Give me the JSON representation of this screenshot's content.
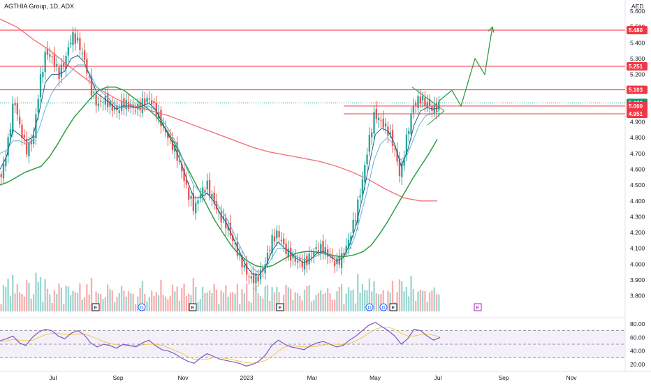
{
  "header": {
    "title": "AGTHIA Group, 1D, ADX",
    "currency": "AED"
  },
  "chart_data": [
    {
      "type": "candlestick",
      "title": "AGTHIA Group, 1D, ADX",
      "ylabel": "AED",
      "ylim": [
        3.75,
        5.6
      ],
      "y_ticks": [
        "5.600",
        "5.500",
        "5.400",
        "5.300",
        "5.200",
        "5.100",
        "5.000",
        "4.900",
        "4.800",
        "4.700",
        "4.600",
        "4.500",
        "4.400",
        "4.300",
        "4.200",
        "4.100",
        "4.000",
        "3.900",
        "3.800"
      ],
      "x_ticks": [
        "Jul",
        "Sep",
        "Nov",
        "2023",
        "Mar",
        "May",
        "Jul",
        "Sep",
        "Nov"
      ],
      "price_levels": [
        {
          "label": "5.480",
          "value": 5.48,
          "color": "#f23645"
        },
        {
          "label": "5.251",
          "value": 5.251,
          "color": "#f23645"
        },
        {
          "label": "5.103",
          "value": 5.103,
          "color": "#f23645"
        },
        {
          "label": "5.020",
          "value": 5.02,
          "color": "#089981"
        },
        {
          "label": "5.000",
          "value": 5.0,
          "color": "#f23645"
        },
        {
          "label": "4.951",
          "value": 4.951,
          "color": "#f23645"
        }
      ],
      "price_series": [
        4.55,
        4.75,
        5.05,
        4.85,
        4.72,
        4.8,
        5.15,
        5.35,
        5.3,
        5.2,
        5.3,
        5.45,
        5.4,
        5.28,
        5.1,
        5.0,
        5.05,
        5.0,
        4.97,
        5.02,
        5.0,
        4.98,
        5.02,
        5.05,
        4.98,
        4.88,
        4.8,
        4.72,
        4.6,
        4.45,
        4.35,
        4.45,
        4.5,
        4.4,
        4.3,
        4.25,
        4.15,
        4.05,
        3.95,
        3.9,
        3.92,
        4.0,
        4.15,
        4.2,
        4.1,
        4.05,
        4.02,
        4.0,
        4.05,
        4.1,
        4.1,
        4.05,
        4.0,
        4.05,
        4.15,
        4.3,
        4.5,
        4.75,
        4.95,
        4.9,
        4.85,
        4.75,
        4.55,
        4.8,
        5.0,
        5.05,
        5.02,
        4.98,
        5.0
      ],
      "ma_fast": [
        4.6,
        4.68,
        4.85,
        4.82,
        4.78,
        4.8,
        4.95,
        5.15,
        5.2,
        5.2,
        5.22,
        5.3,
        5.32,
        5.28,
        5.18,
        5.08,
        5.05,
        5.02,
        4.98,
        5.0,
        5.0,
        4.99,
        5.0,
        5.02,
        4.98,
        4.9,
        4.82,
        4.74,
        4.64,
        4.52,
        4.42,
        4.42,
        4.45,
        4.4,
        4.32,
        4.26,
        4.17,
        4.08,
        3.99,
        3.94,
        3.93,
        3.98,
        4.08,
        4.14,
        4.1,
        4.07,
        4.03,
        4.01,
        4.03,
        4.07,
        4.08,
        4.05,
        4.02,
        4.04,
        4.12,
        4.24,
        4.42,
        4.62,
        4.82,
        4.86,
        4.84,
        4.76,
        4.62,
        4.72,
        4.88,
        4.97,
        4.99,
        4.98,
        4.99
      ],
      "ma_mid": [
        4.7,
        4.72,
        4.78,
        4.78,
        4.76,
        4.78,
        4.85,
        4.98,
        5.08,
        5.14,
        5.18,
        5.22,
        5.26,
        5.26,
        5.2,
        5.12,
        5.08,
        5.04,
        5.0,
        4.99,
        4.99,
        4.99,
        4.99,
        5.0,
        4.98,
        4.92,
        4.86,
        4.79,
        4.7,
        4.6,
        4.5,
        4.46,
        4.45,
        4.42,
        4.36,
        4.3,
        4.22,
        4.13,
        4.05,
        3.98,
        3.95,
        3.96,
        4.03,
        4.1,
        4.1,
        4.08,
        4.05,
        4.03,
        4.03,
        4.05,
        4.07,
        4.06,
        4.04,
        4.04,
        4.08,
        4.17,
        4.32,
        4.48,
        4.66,
        4.76,
        4.8,
        4.76,
        4.66,
        4.68,
        4.78,
        4.88,
        4.94,
        4.95,
        4.97
      ],
      "ma_slow": [
        4.5,
        4.52,
        4.55,
        4.58,
        4.6,
        4.62,
        4.68,
        4.76,
        4.85,
        4.93,
        4.99,
        5.05,
        5.1,
        5.12,
        5.12,
        5.1,
        5.06,
        5.02,
        4.98,
        4.93,
        4.86,
        4.78,
        4.68,
        4.58,
        4.48,
        4.38,
        4.28,
        4.2,
        4.12,
        4.06,
        4.02,
        3.99,
        3.98,
        3.99,
        4.02,
        4.05,
        4.07,
        4.08,
        4.08,
        4.07,
        4.06,
        4.05,
        4.05,
        4.06,
        4.08,
        4.12,
        4.19,
        4.27,
        4.36,
        4.45,
        4.54,
        4.62,
        4.7,
        4.79
      ],
      "ma_200": [
        5.55,
        5.5,
        5.42,
        5.35,
        5.26,
        5.18,
        5.1,
        5.04,
        5.0,
        4.97,
        4.94,
        4.9,
        4.86,
        4.82,
        4.78,
        4.74,
        4.71,
        4.69,
        4.67,
        4.65,
        4.62,
        4.58,
        4.53,
        4.47,
        4.42,
        4.4,
        4.4
      ],
      "projection": [
        5.03,
        5.1,
        5.0,
        5.3,
        5.2,
        5.5
      ],
      "rsi_panel": {
        "ylim": [
          12,
          88
        ],
        "y_ticks": [
          "80.00",
          "60.00",
          "40.00",
          "20.00"
        ],
        "bands": [
          70,
          50,
          30
        ],
        "rsi": [
          55,
          58,
          62,
          52,
          48,
          60,
          68,
          72,
          70,
          62,
          58,
          66,
          70,
          64,
          52,
          46,
          50,
          48,
          44,
          50,
          48,
          46,
          52,
          56,
          48,
          42,
          40,
          36,
          30,
          25,
          22,
          30,
          36,
          32,
          28,
          26,
          24,
          22,
          18,
          20,
          25,
          34,
          48,
          56,
          50,
          46,
          44,
          42,
          48,
          52,
          54,
          50,
          46,
          48,
          56,
          62,
          70,
          78,
          82,
          76,
          70,
          62,
          50,
          58,
          72,
          70,
          62,
          56,
          60
        ],
        "rsi_ma": [
          54,
          55,
          57,
          56,
          55,
          56,
          60,
          64,
          66,
          66,
          64,
          64,
          65,
          65,
          62,
          58,
          54,
          51,
          49,
          48,
          48,
          48,
          49,
          50,
          50,
          48,
          45,
          41,
          37,
          32,
          28,
          27,
          28,
          30,
          30,
          29,
          27,
          25,
          23,
          22,
          23,
          26,
          32,
          40,
          46,
          48,
          47,
          46,
          46,
          47,
          49,
          50,
          50,
          49,
          51,
          55,
          60,
          66,
          72,
          75,
          75,
          72,
          66,
          62,
          62,
          64,
          65,
          63,
          61
        ]
      },
      "event_markers": [
        "E",
        "D",
        "E",
        "E",
        "D",
        "D",
        "E",
        "E"
      ]
    }
  ]
}
